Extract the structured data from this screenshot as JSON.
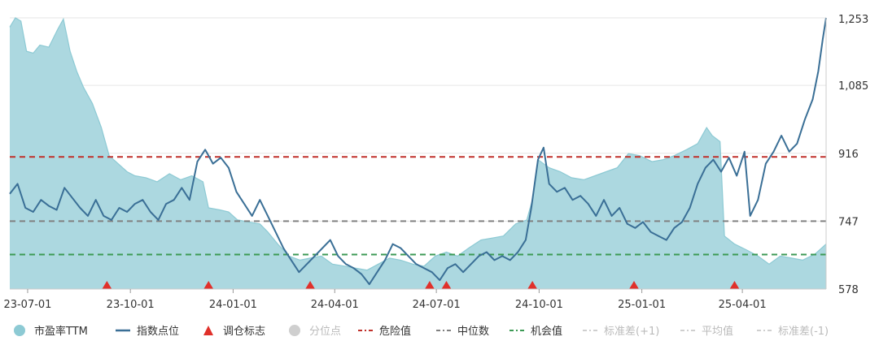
{
  "chart_data": {
    "type": "line",
    "title": "",
    "xlabel": "",
    "ylabel": "",
    "x_start": "2023-06-15",
    "x_end": "2025-06-15",
    "x_ticks": [
      "23-07-01",
      "23-10-01",
      "24-01-01",
      "24-04-01",
      "24-07-01",
      "24-10-01",
      "25-01-01",
      "25-04-01"
    ],
    "x_tick_dates": [
      "2023-07-01",
      "2023-10-01",
      "2024-01-01",
      "2024-04-01",
      "2024-07-01",
      "2024-10-01",
      "2025-01-01",
      "2025-04-01"
    ],
    "y_ticks": [
      "1,253",
      "1,085",
      "916",
      "747",
      "578"
    ],
    "y_tick_values": [
      1253,
      1085,
      916,
      747,
      578
    ],
    "ylim": [
      578,
      1253
    ],
    "grid": true,
    "legend_position": "bottom",
    "colors": {
      "pe_fill": "#a8d6de",
      "pe_line": "#8dcad4",
      "index_line": "#3a6f96",
      "marker": "#e0302a",
      "danger": "#c0312b",
      "median": "#808080",
      "opportunity": "#3c9a55",
      "muted": "#cfcfcf"
    },
    "series": [
      {
        "name": "市盈率TTM",
        "kind": "area",
        "points": [
          [
            "2023-06-15",
            1230
          ],
          [
            "2023-06-20",
            1253
          ],
          [
            "2023-06-25",
            1245
          ],
          [
            "2023-06-30",
            1170
          ],
          [
            "2023-07-06",
            1165
          ],
          [
            "2023-07-12",
            1185
          ],
          [
            "2023-07-20",
            1180
          ],
          [
            "2023-07-28",
            1225
          ],
          [
            "2023-08-02",
            1250
          ],
          [
            "2023-08-08",
            1170
          ],
          [
            "2023-08-14",
            1120
          ],
          [
            "2023-08-20",
            1080
          ],
          [
            "2023-08-28",
            1040
          ],
          [
            "2023-09-05",
            980
          ],
          [
            "2023-09-12",
            910
          ],
          [
            "2023-09-20",
            890
          ],
          [
            "2023-09-28",
            870
          ],
          [
            "2023-10-05",
            860
          ],
          [
            "2023-10-15",
            855
          ],
          [
            "2023-10-25",
            845
          ],
          [
            "2023-11-05",
            865
          ],
          [
            "2023-11-15",
            850
          ],
          [
            "2023-11-25",
            860
          ],
          [
            "2023-12-05",
            845
          ],
          [
            "2023-12-10",
            780
          ],
          [
            "2023-12-20",
            775
          ],
          [
            "2023-12-28",
            770
          ],
          [
            "2024-01-05",
            750
          ],
          [
            "2024-01-15",
            745
          ],
          [
            "2024-01-25",
            740
          ],
          [
            "2024-02-01",
            720
          ],
          [
            "2024-02-10",
            690
          ],
          [
            "2024-02-20",
            660
          ],
          [
            "2024-03-01",
            650
          ],
          [
            "2024-03-10",
            655
          ],
          [
            "2024-03-20",
            660
          ],
          [
            "2024-03-30",
            640
          ],
          [
            "2024-04-10",
            635
          ],
          [
            "2024-04-20",
            630
          ],
          [
            "2024-04-30",
            625
          ],
          [
            "2024-05-10",
            640
          ],
          [
            "2024-05-20",
            655
          ],
          [
            "2024-05-30",
            650
          ],
          [
            "2024-06-10",
            640
          ],
          [
            "2024-06-20",
            635
          ],
          [
            "2024-06-30",
            660
          ],
          [
            "2024-07-10",
            670
          ],
          [
            "2024-07-20",
            660
          ],
          [
            "2024-07-30",
            680
          ],
          [
            "2024-08-10",
            700
          ],
          [
            "2024-08-20",
            705
          ],
          [
            "2024-08-30",
            710
          ],
          [
            "2024-09-10",
            740
          ],
          [
            "2024-09-20",
            750
          ],
          [
            "2024-09-25",
            800
          ],
          [
            "2024-09-30",
            900
          ],
          [
            "2024-10-10",
            880
          ],
          [
            "2024-10-20",
            870
          ],
          [
            "2024-10-30",
            855
          ],
          [
            "2024-11-10",
            850
          ],
          [
            "2024-11-20",
            860
          ],
          [
            "2024-11-30",
            870
          ],
          [
            "2024-12-10",
            880
          ],
          [
            "2024-12-20",
            915
          ],
          [
            "2024-12-30",
            910
          ],
          [
            "2025-01-10",
            895
          ],
          [
            "2025-01-20",
            900
          ],
          [
            "2025-01-30",
            910
          ],
          [
            "2025-02-10",
            925
          ],
          [
            "2025-02-20",
            940
          ],
          [
            "2025-02-28",
            980
          ],
          [
            "2025-03-05",
            960
          ],
          [
            "2025-03-12",
            945
          ],
          [
            "2025-03-16",
            710
          ],
          [
            "2025-03-25",
            690
          ],
          [
            "2025-04-05",
            675
          ],
          [
            "2025-04-15",
            660
          ],
          [
            "2025-04-25",
            640
          ],
          [
            "2025-05-05",
            660
          ],
          [
            "2025-05-15",
            655
          ],
          [
            "2025-05-25",
            650
          ],
          [
            "2025-06-05",
            665
          ],
          [
            "2025-06-15",
            690
          ]
        ]
      },
      {
        "name": "指数点位",
        "kind": "line",
        "points": [
          [
            "2023-06-15",
            815
          ],
          [
            "2023-06-22",
            840
          ],
          [
            "2023-06-29",
            780
          ],
          [
            "2023-07-06",
            770
          ],
          [
            "2023-07-13",
            800
          ],
          [
            "2023-07-20",
            785
          ],
          [
            "2023-07-27",
            775
          ],
          [
            "2023-08-03",
            830
          ],
          [
            "2023-08-10",
            805
          ],
          [
            "2023-08-17",
            780
          ],
          [
            "2023-08-24",
            760
          ],
          [
            "2023-08-31",
            800
          ],
          [
            "2023-09-07",
            760
          ],
          [
            "2023-09-14",
            750
          ],
          [
            "2023-09-21",
            780
          ],
          [
            "2023-09-28",
            770
          ],
          [
            "2023-10-05",
            790
          ],
          [
            "2023-10-12",
            800
          ],
          [
            "2023-10-19",
            770
          ],
          [
            "2023-10-26",
            750
          ],
          [
            "2023-11-02",
            790
          ],
          [
            "2023-11-09",
            800
          ],
          [
            "2023-11-16",
            830
          ],
          [
            "2023-11-23",
            800
          ],
          [
            "2023-11-30",
            895
          ],
          [
            "2023-12-07",
            925
          ],
          [
            "2023-12-14",
            890
          ],
          [
            "2023-12-21",
            905
          ],
          [
            "2023-12-28",
            880
          ],
          [
            "2024-01-04",
            820
          ],
          [
            "2024-01-11",
            790
          ],
          [
            "2024-01-18",
            760
          ],
          [
            "2024-01-25",
            800
          ],
          [
            "2024-02-01",
            760
          ],
          [
            "2024-02-08",
            720
          ],
          [
            "2024-02-15",
            680
          ],
          [
            "2024-02-22",
            650
          ],
          [
            "2024-02-29",
            620
          ],
          [
            "2024-03-07",
            640
          ],
          [
            "2024-03-14",
            660
          ],
          [
            "2024-03-21",
            680
          ],
          [
            "2024-03-28",
            700
          ],
          [
            "2024-04-04",
            660
          ],
          [
            "2024-04-11",
            640
          ],
          [
            "2024-04-18",
            630
          ],
          [
            "2024-04-25",
            615
          ],
          [
            "2024-05-02",
            590
          ],
          [
            "2024-05-09",
            620
          ],
          [
            "2024-05-16",
            650
          ],
          [
            "2024-05-23",
            690
          ],
          [
            "2024-05-30",
            680
          ],
          [
            "2024-06-06",
            660
          ],
          [
            "2024-06-13",
            640
          ],
          [
            "2024-06-20",
            630
          ],
          [
            "2024-06-27",
            620
          ],
          [
            "2024-07-04",
            600
          ],
          [
            "2024-07-11",
            630
          ],
          [
            "2024-07-18",
            640
          ],
          [
            "2024-07-25",
            620
          ],
          [
            "2024-08-01",
            640
          ],
          [
            "2024-08-08",
            660
          ],
          [
            "2024-08-15",
            670
          ],
          [
            "2024-08-22",
            650
          ],
          [
            "2024-08-29",
            660
          ],
          [
            "2024-09-05",
            650
          ],
          [
            "2024-09-12",
            670
          ],
          [
            "2024-09-19",
            700
          ],
          [
            "2024-09-24",
            780
          ],
          [
            "2024-09-30",
            900
          ],
          [
            "2024-10-05",
            930
          ],
          [
            "2024-10-10",
            840
          ],
          [
            "2024-10-17",
            820
          ],
          [
            "2024-10-24",
            830
          ],
          [
            "2024-10-31",
            800
          ],
          [
            "2024-11-07",
            810
          ],
          [
            "2024-11-14",
            790
          ],
          [
            "2024-11-21",
            760
          ],
          [
            "2024-11-28",
            800
          ],
          [
            "2024-12-05",
            760
          ],
          [
            "2024-12-12",
            780
          ],
          [
            "2024-12-19",
            740
          ],
          [
            "2024-12-26",
            730
          ],
          [
            "2025-01-02",
            745
          ],
          [
            "2025-01-09",
            720
          ],
          [
            "2025-01-16",
            710
          ],
          [
            "2025-01-23",
            700
          ],
          [
            "2025-01-30",
            730
          ],
          [
            "2025-02-06",
            745
          ],
          [
            "2025-02-13",
            780
          ],
          [
            "2025-02-20",
            840
          ],
          [
            "2025-02-27",
            880
          ],
          [
            "2025-03-06",
            900
          ],
          [
            "2025-03-13",
            870
          ],
          [
            "2025-03-20",
            905
          ],
          [
            "2025-03-27",
            860
          ],
          [
            "2025-04-03",
            920
          ],
          [
            "2025-04-08",
            760
          ],
          [
            "2025-04-15",
            800
          ],
          [
            "2025-04-22",
            890
          ],
          [
            "2025-04-29",
            920
          ],
          [
            "2025-05-06",
            960
          ],
          [
            "2025-05-13",
            920
          ],
          [
            "2025-05-20",
            940
          ],
          [
            "2025-05-27",
            1000
          ],
          [
            "2025-06-03",
            1050
          ],
          [
            "2025-06-08",
            1120
          ],
          [
            "2025-06-12",
            1200
          ],
          [
            "2025-06-15",
            1253
          ]
        ]
      }
    ],
    "reference_lines": [
      {
        "name": "危险值",
        "value": 907,
        "style": "danger"
      },
      {
        "name": "中位数",
        "value": 747,
        "style": "median"
      },
      {
        "name": "机会值",
        "value": 664,
        "style": "opportunity"
      }
    ],
    "rebalance_markers": [
      "2023-09-10",
      "2023-12-10",
      "2024-03-10",
      "2024-06-25",
      "2024-07-10",
      "2024-09-25",
      "2024-12-25",
      "2025-03-25"
    ],
    "legend": [
      {
        "label": "市盈率TTM",
        "symbol": "circle",
        "color": "#8dcad4",
        "muted": false
      },
      {
        "label": "指数点位",
        "symbol": "line",
        "color": "#3a6f96",
        "muted": false
      },
      {
        "label": "调仓标志",
        "symbol": "triangle",
        "color": "#e0302a",
        "muted": false
      },
      {
        "label": "分位点",
        "symbol": "circle",
        "color": "#cfcfcf",
        "muted": true
      },
      {
        "label": "危险值",
        "symbol": "dashdot",
        "color": "#c0312b",
        "muted": false
      },
      {
        "label": "中位数",
        "symbol": "dashdot",
        "color": "#808080",
        "muted": false
      },
      {
        "label": "机会值",
        "symbol": "dashdot",
        "color": "#3c9a55",
        "muted": false
      },
      {
        "label": "标准差(+1)",
        "symbol": "dashdot",
        "color": "#cfcfcf",
        "muted": true
      },
      {
        "label": "平均值",
        "symbol": "dashdot",
        "color": "#cfcfcf",
        "muted": true
      },
      {
        "label": "标准差(-1)",
        "symbol": "dashdot",
        "color": "#cfcfcf",
        "muted": true
      }
    ]
  }
}
